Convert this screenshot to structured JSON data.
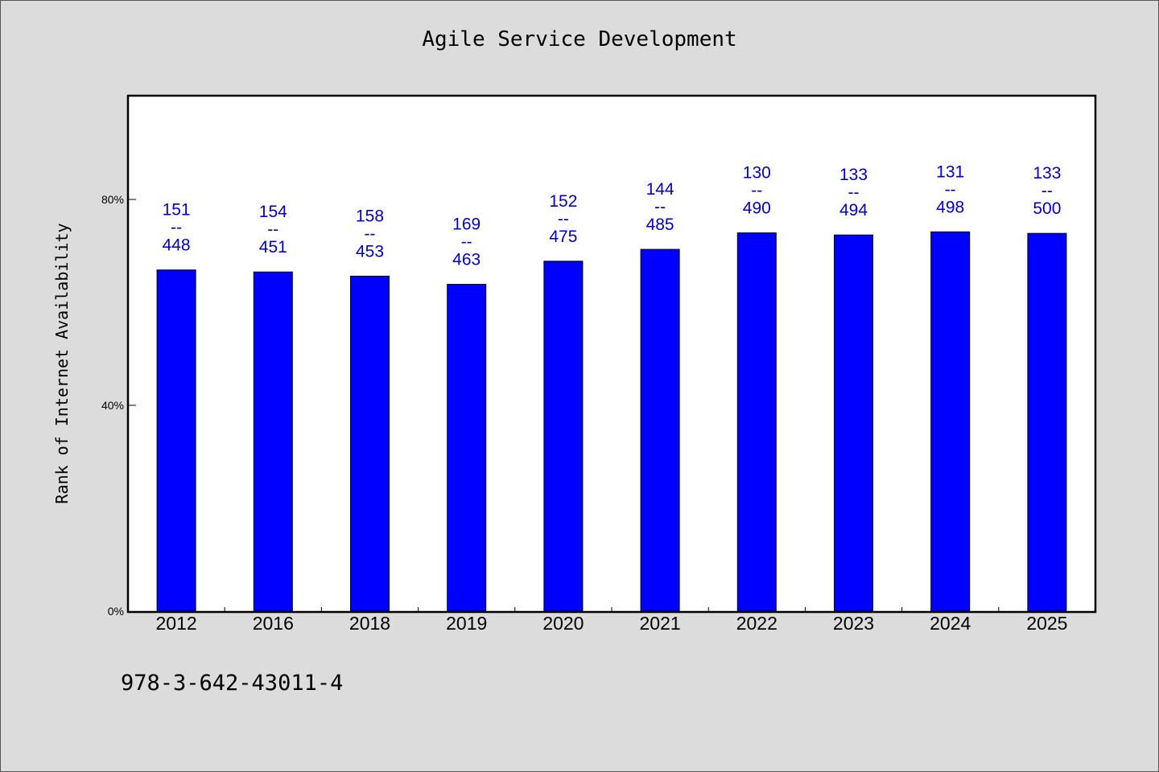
{
  "footnote": "978-3-642-43011-4",
  "colors": {
    "bar": "#0000ff",
    "label": "#0000cc",
    "background": "#dcdcdc",
    "plot_background": "#ffffff"
  },
  "chart_data": {
    "type": "bar",
    "title": "Agile Service Development",
    "xlabel": "",
    "ylabel": "Rank of Internet Availability",
    "categories": [
      "2012",
      "2016",
      "2018",
      "2019",
      "2020",
      "2021",
      "2022",
      "2023",
      "2024",
      "2025"
    ],
    "numerators": [
      151,
      154,
      158,
      169,
      152,
      144,
      130,
      133,
      131,
      133
    ],
    "denominators": [
      448,
      451,
      453,
      463,
      475,
      485,
      490,
      494,
      498,
      500
    ],
    "values": [
      66.3,
      65.9,
      65.1,
      63.5,
      68.0,
      70.3,
      73.5,
      73.1,
      73.7,
      73.4
    ],
    "value_unit": "%",
    "label_separator": "--",
    "ylim": [
      0,
      100
    ],
    "yticks": [
      0,
      40,
      80
    ],
    "ytick_labels": [
      "0%",
      "40%",
      "80%"
    ],
    "grid": false,
    "legend": "none"
  }
}
